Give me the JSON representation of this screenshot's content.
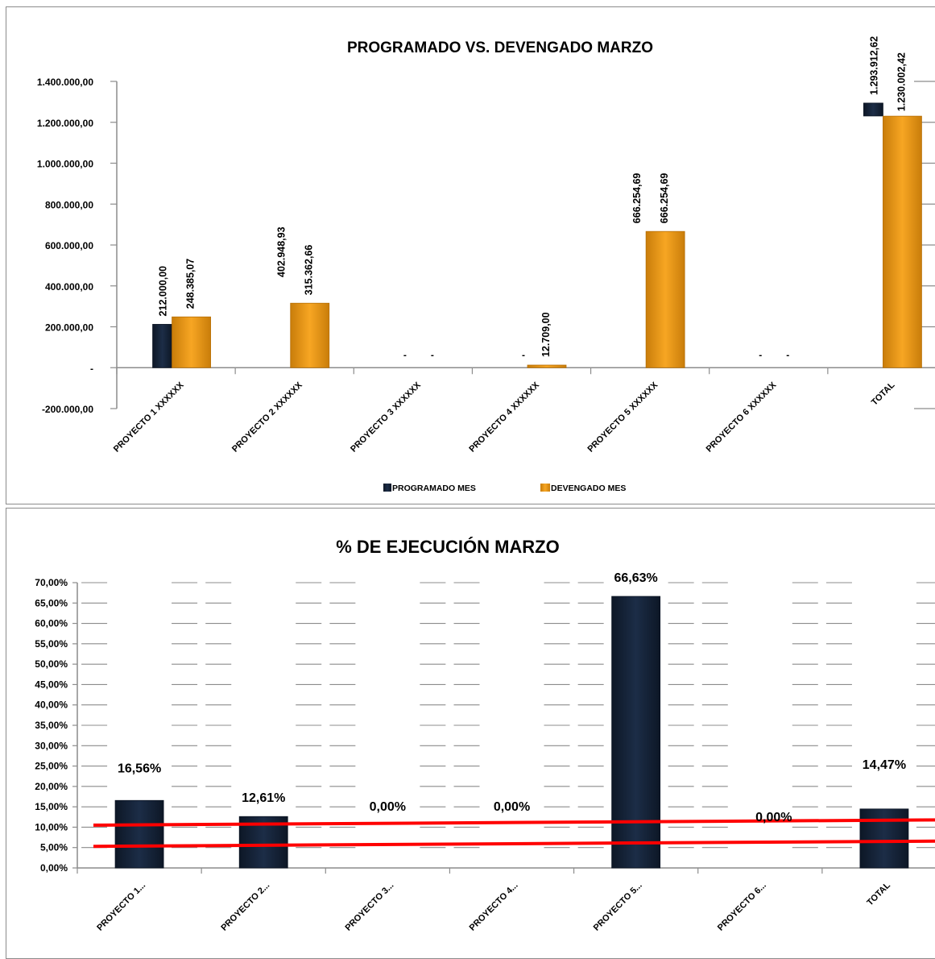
{
  "colors": {
    "programado": "#1c2d47",
    "devengado": "#f7a623",
    "limit_line": "#ff0000",
    "grid": "#8c8c8c"
  },
  "chart_data": [
    {
      "type": "bar",
      "title": "PROGRAMADO VS. DEVENGADO  MARZO",
      "categories": [
        "PROYECTO 1 XXXXXX",
        "PROYECTO 2 XXXXXX",
        "PROYECTO 3 XXXXXX",
        "PROYECTO 4 XXXXXX",
        "PROYECTO 5 XXXXXX",
        "PROYECTO 6 XXXXXX",
        "TOTAL"
      ],
      "ylim": [
        -200000,
        1400000
      ],
      "yticks": [
        -200000,
        0,
        200000,
        400000,
        600000,
        800000,
        1000000,
        1200000,
        1400000
      ],
      "ytick_labels": [
        "-200.000,00",
        "-",
        "200.000,00",
        "400.000,00",
        "600.000,00",
        "800.000,00",
        "1.000.000,00",
        "1.200.000,00",
        "1.400.000,00"
      ],
      "series": [
        {
          "name": "PROGRAMADO MES",
          "values": [
            212000.0,
            402948.93,
            0,
            0,
            666254.69,
            0,
            1293912.62
          ],
          "labels": [
            "212.000,00",
            "402.948,93",
            "-",
            "-",
            "666.254,69",
            "-",
            "1.293.912,62"
          ]
        },
        {
          "name": "DEVENGADO MES",
          "values": [
            248385.07,
            315362.66,
            0,
            12709.0,
            666254.69,
            0,
            1230002.42
          ],
          "labels": [
            "248.385,07",
            "315.362,66",
            "-",
            "12.709,00",
            "666.254,69",
            "-",
            "1.230.002,42"
          ]
        }
      ],
      "legend": "bottom",
      "grid": false
    },
    {
      "type": "bar",
      "title": "% DE EJECUCIÓN MARZO",
      "categories": [
        "PROYECTO 1...",
        "PROYECTO 2...",
        "PROYECTO 3...",
        "PROYECTO 4...",
        "PROYECTO 5...",
        "PROYECTO 6...",
        "TOTAL"
      ],
      "values": [
        16.56,
        12.61,
        0.0,
        0.0,
        66.63,
        0.0,
        14.47
      ],
      "labels": [
        "16,56%",
        "12,61%",
        "0,00%",
        "0,00%",
        "66,63%",
        "0,00%",
        "14,47%"
      ],
      "ylim": [
        0,
        70
      ],
      "yticks": [
        0,
        5,
        10,
        15,
        20,
        25,
        30,
        35,
        40,
        45,
        50,
        55,
        60,
        65,
        70
      ],
      "ytick_labels": [
        "0,00%",
        "5,00%",
        "10,00%",
        "15,00%",
        "20,00%",
        "25,00%",
        "30,00%",
        "35,00%",
        "40,00%",
        "45,00%",
        "50,00%",
        "55,00%",
        "60,00%",
        "65,00%",
        "70,00%"
      ],
      "reference_lines": [
        {
          "from": 10.5,
          "to": 11.8
        },
        {
          "from": 5.3,
          "to": 6.6
        }
      ],
      "grid": true
    }
  ]
}
